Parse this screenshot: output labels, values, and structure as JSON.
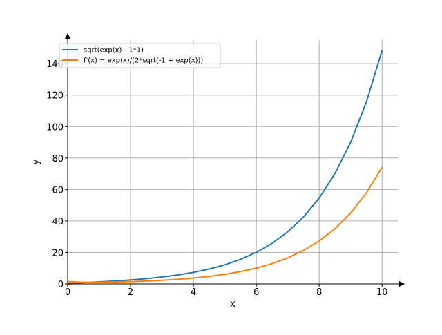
{
  "chart_data": {
    "type": "line",
    "title": "",
    "xlabel": "x",
    "ylabel": "y",
    "xlim": [
      0,
      10.5
    ],
    "ylim": [
      0,
      155
    ],
    "xticks": [
      0,
      2,
      4,
      6,
      8,
      10
    ],
    "xtick_labels": [
      "0",
      "2",
      "4",
      "6",
      "8",
      "10"
    ],
    "yticks": [
      0,
      20,
      40,
      60,
      80,
      100,
      120,
      140
    ],
    "ytick_labels": [
      "0",
      "20",
      "40",
      "60",
      "80",
      "100",
      "120",
      "140"
    ],
    "grid": true,
    "legend_position": "top-left",
    "series": [
      {
        "name": "sqrt(exp(x) - 1*1)",
        "color": "#1f77b4",
        "x": [
          0,
          0.5,
          1,
          1.5,
          2,
          2.5,
          3,
          3.5,
          4,
          4.5,
          5,
          5.5,
          6,
          6.5,
          7,
          7.5,
          8,
          8.5,
          9,
          9.5,
          10
        ],
        "y": [
          0,
          0.81,
          1.31,
          1.83,
          2.53,
          3.32,
          4.37,
          5.67,
          7.32,
          9.43,
          12.14,
          15.61,
          20.06,
          25.77,
          33.1,
          42.51,
          54.59,
          70.1,
          90.01,
          115.58,
          148.41
        ]
      },
      {
        "name": "f'(x) = exp(x)/(2*sqrt(-1 + exp(x)))",
        "color": "#ff7f0e",
        "x": [
          0,
          0.5,
          1,
          1.5,
          2,
          2.5,
          3,
          3.5,
          4,
          4.5,
          5,
          5.5,
          6,
          6.5,
          7,
          7.5,
          8,
          8.5,
          9,
          9.5,
          10
        ],
        "y": [
          1.5,
          1.02,
          1.04,
          1.22,
          1.46,
          1.83,
          2.3,
          2.9,
          3.73,
          4.77,
          6.11,
          7.84,
          10.05,
          12.9,
          16.56,
          21.27,
          27.3,
          35.06,
          45.01,
          57.79,
          74.21
        ]
      }
    ]
  }
}
